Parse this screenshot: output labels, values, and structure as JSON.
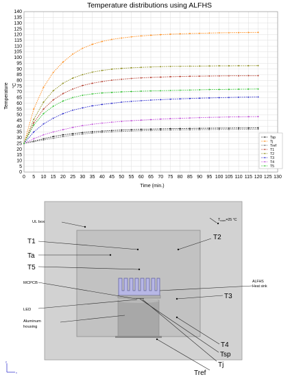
{
  "chart_data": {
    "type": "line",
    "title": "Temperature distributions using ALFHS",
    "xlabel": "Time (min.)",
    "ylabel": "Temperature",
    "ylabel_unit": "°C",
    "xlim": [
      0,
      130
    ],
    "ylim": [
      0,
      140
    ],
    "xticks": [
      0,
      5,
      10,
      15,
      20,
      25,
      30,
      35,
      40,
      45,
      50,
      55,
      60,
      65,
      70,
      75,
      80,
      85,
      90,
      95,
      100,
      105,
      110,
      115,
      120,
      125,
      130
    ],
    "yticks": [
      0,
      5,
      10,
      15,
      20,
      25,
      30,
      35,
      40,
      45,
      50,
      55,
      60,
      65,
      70,
      75,
      80,
      85,
      90,
      95,
      100,
      105,
      110,
      115,
      120,
      125,
      130,
      135,
      140
    ],
    "grid": true,
    "legend_position": "bottom-right",
    "x": [
      0,
      5,
      10,
      15,
      20,
      25,
      30,
      35,
      40,
      45,
      50,
      55,
      60,
      65,
      70,
      75,
      80,
      85,
      90,
      95,
      100,
      105,
      110,
      115,
      120
    ],
    "series": [
      {
        "name": "Tsp",
        "color": "#1a1a1a",
        "values": [
          25,
          27,
          29,
          31,
          32.5,
          33.5,
          34.5,
          35.2,
          35.8,
          36.3,
          36.7,
          37,
          37.3,
          37.5,
          37.7,
          37.9,
          38,
          38.1,
          38.2,
          38.3,
          38.4,
          38.4,
          38.5,
          38.5,
          38.6
        ]
      },
      {
        "name": "Tj",
        "color": "#ff8c1a",
        "values": [
          25,
          55,
          74,
          87,
          96,
          103,
          108,
          111.5,
          114,
          115.8,
          117,
          118,
          118.8,
          119.4,
          119.9,
          120.3,
          120.6,
          120.9,
          121.1,
          121.3,
          121.5,
          121.6,
          121.7,
          121.8,
          121.9
        ]
      },
      {
        "name": "Tref",
        "color": "#6e6e6e",
        "values": [
          25,
          26.5,
          28,
          29.5,
          31,
          32.2,
          33.2,
          34,
          34.6,
          35.1,
          35.5,
          35.8,
          36.1,
          36.3,
          36.5,
          36.7,
          36.8,
          36.9,
          37,
          37.1,
          37.2,
          37.2,
          37.3,
          37.3,
          37.4
        ]
      },
      {
        "name": "T1",
        "color": "#b33a2a",
        "values": [
          25,
          43,
          55,
          63,
          68.5,
          72.5,
          75.5,
          77.5,
          79,
          80.2,
          81,
          81.7,
          82.2,
          82.6,
          82.9,
          83.2,
          83.4,
          83.6,
          83.7,
          83.8,
          83.9,
          84,
          84,
          84.1,
          84.1
        ]
      },
      {
        "name": "T2",
        "color": "#8c8c1a",
        "values": [
          25,
          46,
          61,
          71,
          77.5,
          82,
          85,
          87.2,
          88.7,
          89.8,
          90.5,
          91,
          91.4,
          91.7,
          92,
          92.2,
          92.3,
          92.4,
          92.5,
          92.6,
          92.7,
          92.7,
          92.8,
          92.8,
          92.9
        ]
      },
      {
        "name": "T3",
        "color": "#2b2bcc",
        "values": [
          25,
          35,
          42,
          47,
          51,
          54,
          56,
          57.8,
          59,
          60,
          61,
          61.7,
          62.3,
          62.8,
          63.2,
          63.6,
          63.9,
          64.2,
          64.5,
          64.7,
          64.9,
          65.1,
          65.3,
          65.4,
          65.5
        ]
      },
      {
        "name": "T4",
        "color": "#c04bd8",
        "values": [
          25,
          29,
          32.5,
          35,
          37,
          39,
          40.5,
          41.7,
          42.7,
          43.5,
          44.2,
          44.8,
          45.3,
          45.8,
          46.2,
          46.6,
          46.9,
          47.2,
          47.5,
          47.7,
          47.9,
          48.1,
          48.2,
          48.3,
          48.4
        ]
      },
      {
        "name": "T5",
        "color": "#33c233",
        "values": [
          25,
          41,
          51,
          57.5,
          62,
          65,
          67,
          68.2,
          69,
          69.5,
          70,
          70.3,
          70.6,
          70.8,
          71,
          71.2,
          71.4,
          71.6,
          71.8,
          72,
          72.1,
          72.2,
          72.3,
          72.4,
          72.5
        ]
      }
    ]
  },
  "diagram": {
    "room_temp": "T",
    "room_temp_sub": "room",
    "room_temp_value": "=25 °C",
    "ul_box": "UL box",
    "t1": "T1",
    "ta": "Ta",
    "t5": "T5",
    "mcpcb": "MCPCB",
    "led": "LED",
    "housing_line1": "Aluminum",
    "housing_line2": "housing",
    "t2": "T2",
    "t3": "T3",
    "heatsink_line1": "ALFHS",
    "heatsink_line2": "Heat sink",
    "t4": "T4",
    "tsp": "Tsp",
    "tj": "Tj",
    "tref": "Tref",
    "corner_x": "x",
    "corner_y": "y"
  }
}
